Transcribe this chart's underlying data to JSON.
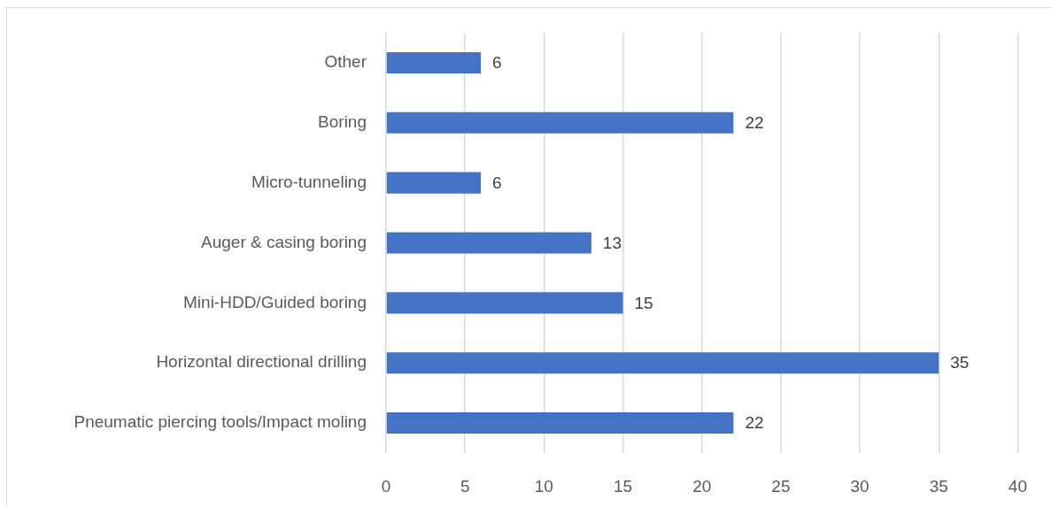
{
  "chart_data": {
    "type": "bar",
    "orientation": "horizontal",
    "categories": [
      "Other",
      "Boring",
      "Micro-tunneling",
      "Auger & casing boring",
      "Mini-HDD/Guided boring",
      "Horizontal directional drilling",
      "Pneumatic piercing tools/Impact moling"
    ],
    "values": [
      6,
      22,
      6,
      13,
      15,
      35,
      22
    ],
    "color": "#4472c4",
    "xlim": [
      0,
      40
    ],
    "xticks": [
      0,
      5,
      10,
      15,
      20,
      25,
      30,
      35,
      40
    ],
    "grid": "x",
    "data_labels": true
  }
}
